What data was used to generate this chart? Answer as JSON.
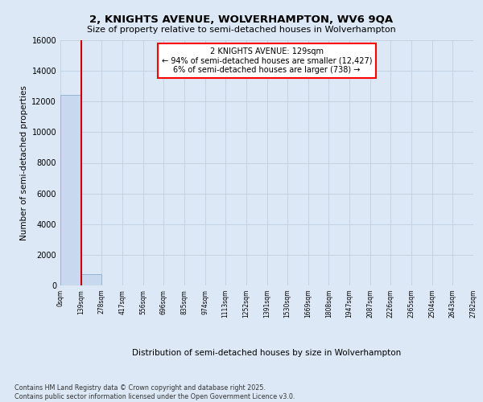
{
  "title": "2, KNIGHTS AVENUE, WOLVERHAMPTON, WV6 9QA",
  "subtitle": "Size of property relative to semi-detached houses in Wolverhampton",
  "xlabel": "Distribution of semi-detached houses by size in Wolverhampton",
  "ylabel": "Number of semi-detached properties",
  "footer_line1": "Contains HM Land Registry data © Crown copyright and database right 2025.",
  "footer_line2": "Contains public sector information licensed under the Open Government Licence v3.0.",
  "annotation_title": "2 KNIGHTS AVENUE: 129sqm",
  "annotation_line1": "← 94% of semi-detached houses are smaller (12,427)",
  "annotation_line2": "6% of semi-detached houses are larger (738) →",
  "bin_labels": [
    "0sqm",
    "139sqm",
    "278sqm",
    "417sqm",
    "556sqm",
    "696sqm",
    "835sqm",
    "974sqm",
    "1113sqm",
    "1252sqm",
    "1391sqm",
    "1530sqm",
    "1669sqm",
    "1808sqm",
    "1947sqm",
    "2087sqm",
    "2226sqm",
    "2365sqm",
    "2504sqm",
    "2643sqm",
    "2782sqm"
  ],
  "bar_counts": [
    12427,
    738,
    0,
    0,
    0,
    0,
    0,
    0,
    0,
    0,
    0,
    0,
    0,
    0,
    0,
    0,
    0,
    0,
    0,
    0
  ],
  "bar_color": "#c8d8ee",
  "bar_edge_color": "#8ab0d0",
  "marker_color": "#cc0000",
  "ylim": [
    0,
    16000
  ],
  "yticks": [
    0,
    2000,
    4000,
    6000,
    8000,
    10000,
    12000,
    14000,
    16000
  ],
  "bg_color": "#dce8f5",
  "grid_color": "#c0cfe0"
}
